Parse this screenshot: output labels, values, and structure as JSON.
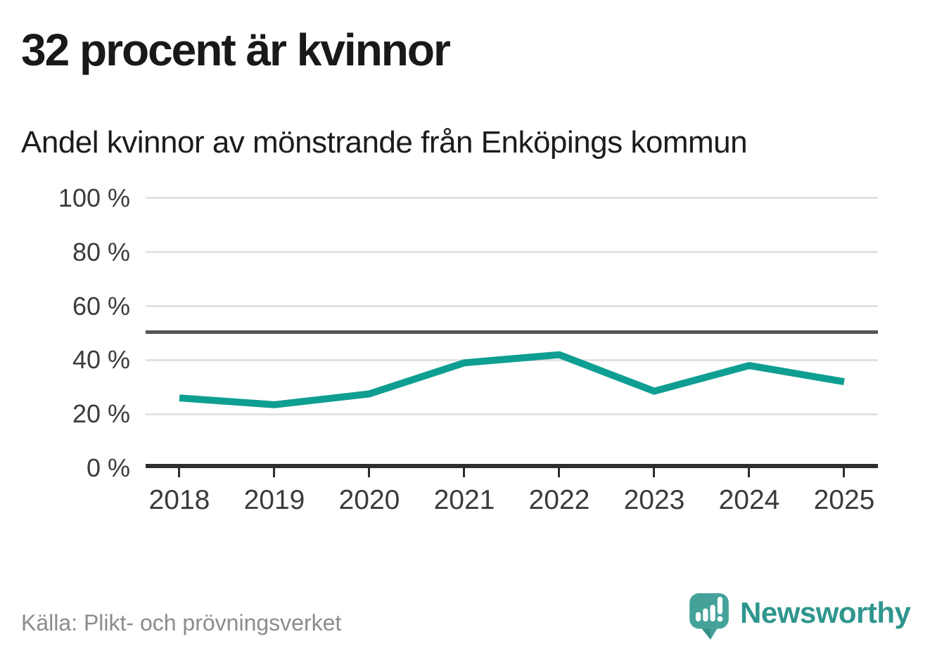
{
  "header": {
    "title": "32 procent är kvinnor",
    "subtitle": "Andel kvinnor av mönstrande från Enköpings kommun"
  },
  "chart_data": {
    "type": "line",
    "title": "32 procent är kvinnor",
    "subtitle": "Andel kvinnor av mönstrande från Enköpings kommun",
    "categories": [
      "2018",
      "2019",
      "2020",
      "2021",
      "2022",
      "2023",
      "2024",
      "2025"
    ],
    "series": [
      {
        "name": "Andel kvinnor av mönstrande",
        "values": [
          26,
          23.5,
          27.5,
          39,
          42,
          28.5,
          38,
          32
        ]
      }
    ],
    "unit": "%",
    "xlabel": "",
    "ylabel": "",
    "ylim": [
      0,
      100
    ],
    "yticks": [
      {
        "value": 100,
        "label": "100 %"
      },
      {
        "value": 80,
        "label": "80 %"
      },
      {
        "value": 60,
        "label": "60 %"
      },
      {
        "value": 40,
        "label": "40 %"
      },
      {
        "value": 20,
        "label": "20 %"
      },
      {
        "value": 0,
        "label": "0 %"
      }
    ],
    "reference_line": {
      "value": 50,
      "color": "#55565a"
    },
    "grid": true,
    "legend_position": "none",
    "line_color": "#0e9e92",
    "grid_color": "#e2e2e2",
    "axis_color": "#2d2d2d"
  },
  "footer": {
    "source": "Källa: Plikt- och prövningsverket",
    "brand": "Newsworthy",
    "brand_color": "#2f968e",
    "logo_icon": "speech-bubble-bar-chart-exclamation"
  }
}
